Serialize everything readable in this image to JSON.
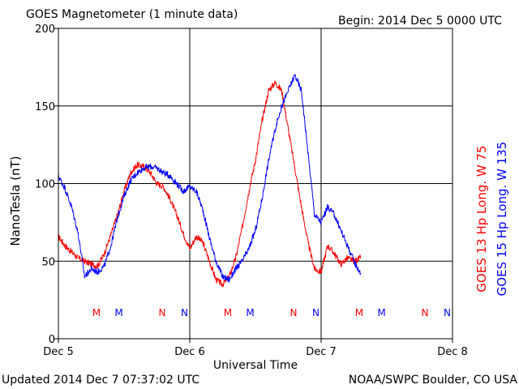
{
  "header": {
    "title": "GOES Magnetometer (1 minute data)",
    "begin": "Begin:  2014 Dec 5 0000 UTC"
  },
  "footer": {
    "updated": "Updated 2014 Dec  7 07:37:02 UTC",
    "source": "NOAA/SWPC Boulder, CO USA"
  },
  "colors": {
    "goes13": "#ff0000",
    "goes15": "#0000ff"
  },
  "chart_data": {
    "type": "line",
    "xlabel": "Universal Time",
    "ylabel": "NanoTesla (nT)",
    "xlim": [
      0,
      3
    ],
    "ylim": [
      0,
      200
    ],
    "yticks": [
      0,
      50,
      100,
      150,
      200
    ],
    "xticks": [
      {
        "value": 0,
        "label": "Dec 5"
      },
      {
        "value": 1,
        "label": "Dec 6"
      },
      {
        "value": 2,
        "label": "Dec 7"
      },
      {
        "value": 3,
        "label": "Dec 8"
      }
    ],
    "grid": true,
    "series": [
      {
        "name": "GOES 13 Hp  Long. W 75",
        "color": "#ff0000",
        "x": [
          0.0,
          0.05,
          0.1,
          0.15,
          0.2,
          0.25,
          0.3,
          0.35,
          0.4,
          0.45,
          0.5,
          0.55,
          0.6,
          0.65,
          0.7,
          0.75,
          0.8,
          0.85,
          0.9,
          0.95,
          1.0,
          1.05,
          1.1,
          1.15,
          1.2,
          1.25,
          1.3,
          1.35,
          1.4,
          1.45,
          1.5,
          1.55,
          1.6,
          1.65,
          1.7,
          1.75,
          1.8,
          1.85,
          1.9,
          1.95,
          2.0,
          2.05,
          2.1,
          2.15,
          2.2,
          2.25,
          2.3
        ],
        "y": [
          66,
          60,
          56,
          52,
          50,
          48,
          47,
          55,
          67,
          80,
          95,
          107,
          112,
          111,
          107,
          100,
          98,
          90,
          80,
          68,
          58,
          66,
          62,
          50,
          38,
          35,
          40,
          52,
          72,
          95,
          115,
          140,
          160,
          165,
          160,
          135,
          110,
          85,
          62,
          45,
          43,
          60,
          55,
          48,
          52,
          50,
          52
        ]
      },
      {
        "name": "GOES 15 Hp  Long. W 135",
        "color": "#0000ff",
        "x": [
          0.0,
          0.05,
          0.1,
          0.15,
          0.2,
          0.25,
          0.3,
          0.35,
          0.4,
          0.45,
          0.5,
          0.55,
          0.6,
          0.65,
          0.7,
          0.75,
          0.8,
          0.85,
          0.9,
          0.95,
          1.0,
          1.05,
          1.1,
          1.15,
          1.2,
          1.25,
          1.3,
          1.35,
          1.4,
          1.45,
          1.5,
          1.55,
          1.6,
          1.65,
          1.7,
          1.75,
          1.8,
          1.85,
          1.9,
          1.95,
          2.0,
          2.05,
          2.1,
          2.15,
          2.2,
          2.25,
          2.3
        ],
        "y": [
          105,
          97,
          85,
          68,
          40,
          45,
          43,
          47,
          60,
          78,
          92,
          102,
          107,
          110,
          111,
          110,
          107,
          105,
          100,
          95,
          98,
          95,
          83,
          65,
          50,
          40,
          38,
          45,
          50,
          58,
          70,
          90,
          115,
          135,
          150,
          160,
          170,
          160,
          120,
          80,
          75,
          85,
          80,
          70,
          60,
          50,
          42
        ]
      }
    ],
    "markers": [
      {
        "x": 0.29,
        "label": "M",
        "color": "#ff0000"
      },
      {
        "x": 0.46,
        "label": "M",
        "color": "#0000ff"
      },
      {
        "x": 0.79,
        "label": "N",
        "color": "#ff0000"
      },
      {
        "x": 0.96,
        "label": "N",
        "color": "#0000ff"
      },
      {
        "x": 1.29,
        "label": "M",
        "color": "#ff0000"
      },
      {
        "x": 1.46,
        "label": "M",
        "color": "#0000ff"
      },
      {
        "x": 1.79,
        "label": "N",
        "color": "#ff0000"
      },
      {
        "x": 1.96,
        "label": "N",
        "color": "#0000ff"
      },
      {
        "x": 2.29,
        "label": "M",
        "color": "#ff0000"
      },
      {
        "x": 2.46,
        "label": "M",
        "color": "#0000ff"
      },
      {
        "x": 2.79,
        "label": "N",
        "color": "#ff0000"
      },
      {
        "x": 2.96,
        "label": "N",
        "color": "#0000ff"
      }
    ]
  }
}
